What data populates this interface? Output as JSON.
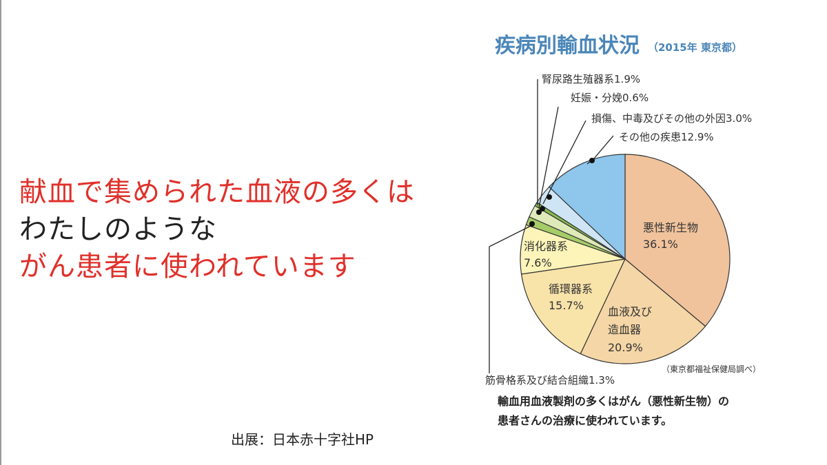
{
  "slide": {
    "message_lines": [
      {
        "text": "献血で集められた血液の多くは",
        "color": "#e0302a"
      },
      {
        "text": "わたしのような",
        "color": "#222222"
      },
      {
        "text": "がん患者に使われています",
        "color": "#e0302a"
      }
    ],
    "source": "出展：日本赤十字社HP"
  },
  "chart_data": {
    "type": "pie",
    "title": "疾病別輸血状況",
    "subtitle": "（2015年 東京都）",
    "unit": "%",
    "slices": [
      {
        "label": "悪性新生物",
        "value": 36.1,
        "display": "36.1%",
        "color": "#f0c39c"
      },
      {
        "label": "血液及び造血器",
        "value": 20.9,
        "display": "20.9%",
        "color": "#f5d6a6"
      },
      {
        "label": "循環器系",
        "value": 15.7,
        "display": "15.7%",
        "color": "#f8e3a9"
      },
      {
        "label": "消化器系",
        "value": 7.6,
        "display": "7.6%",
        "color": "#fcf4b8"
      },
      {
        "label": "筋骨格系及び結合組織",
        "value": 1.3,
        "display": "1.3%",
        "color": "#a6cc68"
      },
      {
        "label": "腎尿路生殖器系",
        "value": 1.9,
        "display": "1.9%",
        "color": "#dfeab9"
      },
      {
        "label": "妊娠・分娩",
        "value": 0.6,
        "display": "0.6%",
        "color": "#86bb50"
      },
      {
        "label": "損傷、中毒及びその他の外因",
        "value": 3.0,
        "display": "3.0%",
        "color": "#cfe5f5"
      },
      {
        "label": "その他の疾患",
        "value": 12.9,
        "display": "12.9%",
        "color": "#8ec6ec"
      }
    ],
    "credit": "（東京都福祉保健局調べ）",
    "note_lines": [
      "輸血用血液製剤の多くはがん（悪性新生物）の",
      "患者さんの治療に使われています。"
    ]
  }
}
